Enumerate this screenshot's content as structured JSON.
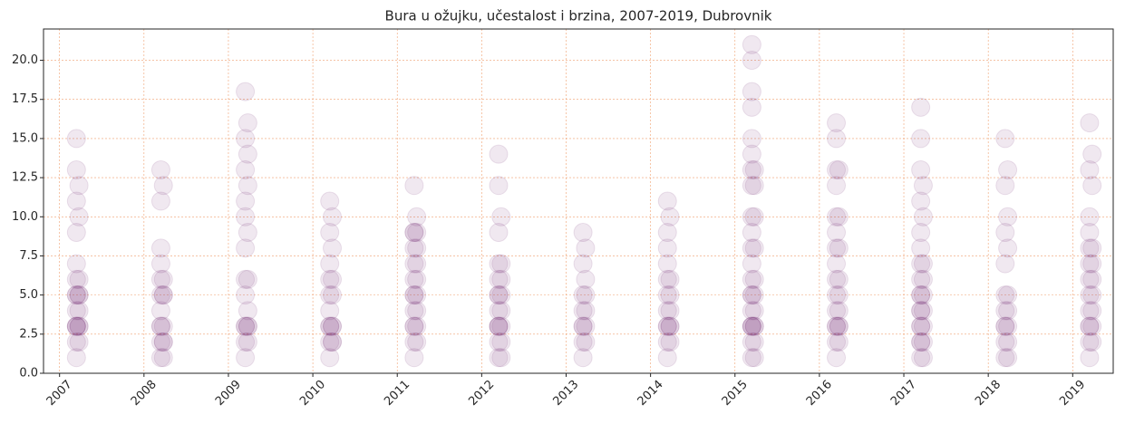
{
  "chart_data": {
    "type": "scatter",
    "title": "Bura u ožujku, učestalost i brzina, 2007-2019, Dubrovnik",
    "color": "#6b1d6b",
    "grid": true,
    "xlim": [
      2006.81,
      2019.48
    ],
    "ylim": [
      0,
      22
    ],
    "xticks": [
      2007,
      2008,
      2009,
      2010,
      2011,
      2012,
      2013,
      2014,
      2015,
      2016,
      2017,
      2018,
      2019
    ],
    "yticks": [
      {
        "value": 0,
        "label": "0.0"
      },
      2.5,
      {
        "value": 5,
        "label": "5.0"
      },
      7.5,
      {
        "value": 10,
        "label": "10.0"
      },
      12.5,
      {
        "value": 15,
        "label": "15.0"
      },
      17.5,
      {
        "value": 20,
        "label": "20.0"
      }
    ],
    "x": [
      2007.2,
      2007.2,
      2007.2,
      2007.2,
      2007.2,
      2007.2,
      2007.2,
      2007.2,
      2007.2,
      2007.2,
      2007.2,
      2007.2,
      2007.2,
      2007.2,
      2007.23,
      2007.23,
      2007.23,
      2007.23,
      2007.23,
      2007.23,
      2007.23,
      2007.23,
      2007.23,
      2008.2,
      2008.2,
      2008.2,
      2008.2,
      2008.2,
      2008.2,
      2008.2,
      2008.2,
      2008.2,
      2008.2,
      2008.2,
      2008.23,
      2008.23,
      2008.23,
      2008.23,
      2008.23,
      2008.23,
      2008.23,
      2008.23,
      2009.2,
      2009.2,
      2009.2,
      2009.2,
      2009.2,
      2009.2,
      2009.2,
      2009.2,
      2009.2,
      2009.2,
      2009.2,
      2009.2,
      2009.23,
      2009.23,
      2009.23,
      2009.23,
      2009.23,
      2009.23,
      2009.23,
      2009.23,
      2009.23,
      2010.2,
      2010.2,
      2010.2,
      2010.2,
      2010.2,
      2010.2,
      2010.2,
      2010.2,
      2010.2,
      2010.2,
      2010.23,
      2010.23,
      2010.23,
      2010.23,
      2010.23,
      2010.23,
      2010.23,
      2010.23,
      2011.2,
      2011.2,
      2011.2,
      2011.2,
      2011.2,
      2011.2,
      2011.2,
      2011.2,
      2011.2,
      2011.2,
      2011.2,
      2011.2,
      2011.2,
      2011.23,
      2011.23,
      2011.23,
      2011.23,
      2011.23,
      2011.23,
      2011.23,
      2011.23,
      2011.23,
      2012.2,
      2012.2,
      2012.2,
      2012.2,
      2012.2,
      2012.2,
      2012.2,
      2012.2,
      2012.2,
      2012.2,
      2012.2,
      2012.2,
      2012.2,
      2012.23,
      2012.23,
      2012.23,
      2012.23,
      2012.23,
      2012.23,
      2012.23,
      2012.23,
      2013.2,
      2013.2,
      2013.2,
      2013.2,
      2013.2,
      2013.2,
      2013.2,
      2013.2,
      2013.23,
      2013.23,
      2013.23,
      2013.23,
      2013.23,
      2013.23,
      2014.2,
      2014.2,
      2014.2,
      2014.2,
      2014.2,
      2014.2,
      2014.2,
      2014.2,
      2014.2,
      2014.2,
      2014.2,
      2014.23,
      2014.23,
      2014.23,
      2014.23,
      2014.23,
      2014.23,
      2014.23,
      2015.2,
      2015.2,
      2015.2,
      2015.2,
      2015.2,
      2015.2,
      2015.2,
      2015.2,
      2015.2,
      2015.2,
      2015.2,
      2015.2,
      2015.2,
      2015.2,
      2015.2,
      2015.2,
      2015.2,
      2015.2,
      2015.2,
      2015.2,
      2015.2,
      2015.23,
      2015.23,
      2015.23,
      2015.23,
      2015.23,
      2015.23,
      2015.23,
      2015.23,
      2015.23,
      2015.23,
      2015.23,
      2016.2,
      2016.2,
      2016.2,
      2016.2,
      2016.2,
      2016.2,
      2016.2,
      2016.2,
      2016.2,
      2016.2,
      2016.2,
      2016.2,
      2016.2,
      2016.2,
      2016.2,
      2016.23,
      2016.23,
      2016.23,
      2016.23,
      2016.23,
      2016.23,
      2016.23,
      2016.23,
      2016.23,
      2017.2,
      2017.2,
      2017.2,
      2017.2,
      2017.2,
      2017.2,
      2017.2,
      2017.2,
      2017.2,
      2017.2,
      2017.2,
      2017.2,
      2017.2,
      2017.2,
      2017.2,
      2017.2,
      2017.2,
      2017.23,
      2017.23,
      2017.23,
      2017.23,
      2017.23,
      2017.23,
      2017.23,
      2017.23,
      2017.23,
      2018.2,
      2018.2,
      2018.2,
      2018.2,
      2018.2,
      2018.2,
      2018.2,
      2018.2,
      2018.2,
      2018.2,
      2018.23,
      2018.23,
      2018.23,
      2018.23,
      2018.23,
      2018.23,
      2018.23,
      2018.23,
      2019.2,
      2019.2,
      2019.2,
      2019.2,
      2019.2,
      2019.2,
      2019.2,
      2019.2,
      2019.2,
      2019.2,
      2019.2,
      2019.2,
      2019.2,
      2019.23,
      2019.23,
      2019.23,
      2019.23,
      2019.23,
      2019.23,
      2019.23,
      2019.23,
      2019.23
    ],
    "values": [
      1,
      2,
      3,
      3,
      3,
      4,
      5,
      5,
      6,
      7,
      9,
      11,
      13,
      15,
      2,
      3,
      3,
      4,
      5,
      5,
      6,
      10,
      12,
      1,
      2,
      3,
      3,
      4,
      5,
      6,
      7,
      8,
      11,
      13,
      1,
      2,
      2,
      3,
      5,
      5,
      6,
      12,
      1,
      2,
      3,
      3,
      5,
      6,
      8,
      10,
      11,
      13,
      15,
      18,
      2,
      3,
      3,
      4,
      6,
      9,
      12,
      14,
      16,
      1,
      2,
      3,
      3,
      4,
      5,
      6,
      7,
      9,
      11,
      2,
      2,
      3,
      3,
      5,
      6,
      8,
      10,
      1,
      2,
      3,
      3,
      4,
      5,
      5,
      6,
      7,
      8,
      9,
      9,
      12,
      2,
      3,
      4,
      5,
      6,
      7,
      8,
      9,
      10,
      1,
      2,
      3,
      3,
      3,
      4,
      5,
      5,
      6,
      7,
      9,
      12,
      14,
      1,
      2,
      3,
      4,
      5,
      6,
      7,
      10,
      1,
      2,
      3,
      3,
      4,
      5,
      7,
      9,
      2,
      3,
      4,
      5,
      6,
      8,
      1,
      2,
      3,
      3,
      4,
      5,
      6,
      7,
      8,
      9,
      11,
      2,
      3,
      3,
      4,
      5,
      6,
      10,
      1,
      2,
      3,
      3,
      3,
      4,
      5,
      5,
      6,
      7,
      8,
      9,
      10,
      12,
      13,
      14,
      15,
      17,
      18,
      20,
      21,
      1,
      2,
      3,
      3,
      4,
      5,
      6,
      8,
      10,
      12,
      13,
      1,
      2,
      3,
      3,
      4,
      5,
      6,
      7,
      8,
      9,
      10,
      12,
      13,
      15,
      16,
      2,
      3,
      3,
      4,
      5,
      6,
      8,
      10,
      13,
      1,
      2,
      2,
      3,
      3,
      4,
      4,
      5,
      5,
      6,
      7,
      8,
      9,
      11,
      13,
      15,
      17,
      1,
      2,
      3,
      4,
      5,
      6,
      7,
      10,
      12,
      1,
      2,
      3,
      3,
      4,
      5,
      7,
      9,
      12,
      15,
      1,
      2,
      3,
      4,
      5,
      8,
      10,
      13,
      1,
      2,
      3,
      3,
      4,
      5,
      6,
      7,
      8,
      9,
      10,
      13,
      16,
      2,
      3,
      4,
      5,
      6,
      7,
      8,
      12,
      14
    ]
  }
}
